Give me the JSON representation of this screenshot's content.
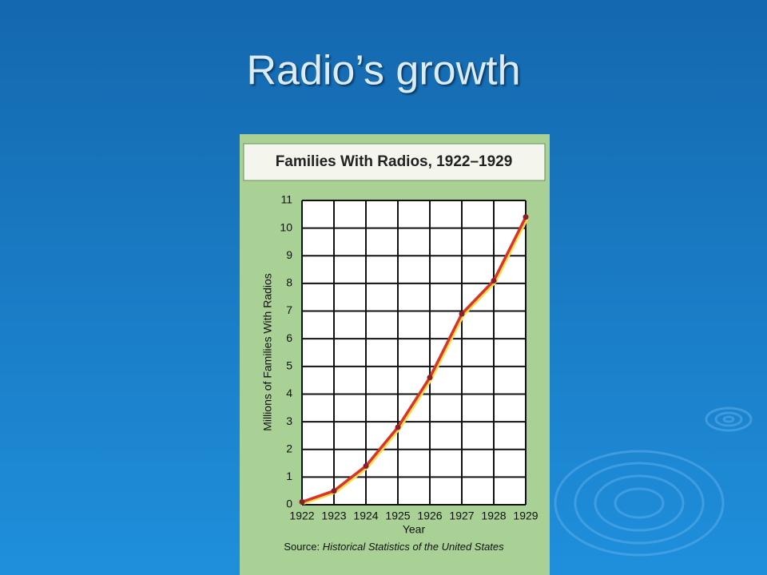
{
  "slide_title": "Radio’s growth",
  "chart_data": {
    "type": "line",
    "title": "Families With Radios, 1922–1929",
    "categories": [
      "1922",
      "1923",
      "1924",
      "1925",
      "1926",
      "1927",
      "1928",
      "1929"
    ],
    "values": [
      0.1,
      0.5,
      1.4,
      2.8,
      4.6,
      6.9,
      8.1,
      10.4
    ],
    "color": "#d8342c",
    "ylim": [
      0,
      11
    ],
    "yticks": [
      0,
      1,
      2,
      3,
      4,
      5,
      6,
      7,
      8,
      9,
      10,
      11
    ],
    "grid": true,
    "x_label": "Year",
    "y_label": "Millions of Families With Radios",
    "source_prefix": "Source:",
    "source_title": "Historical Statistics of the United States"
  }
}
